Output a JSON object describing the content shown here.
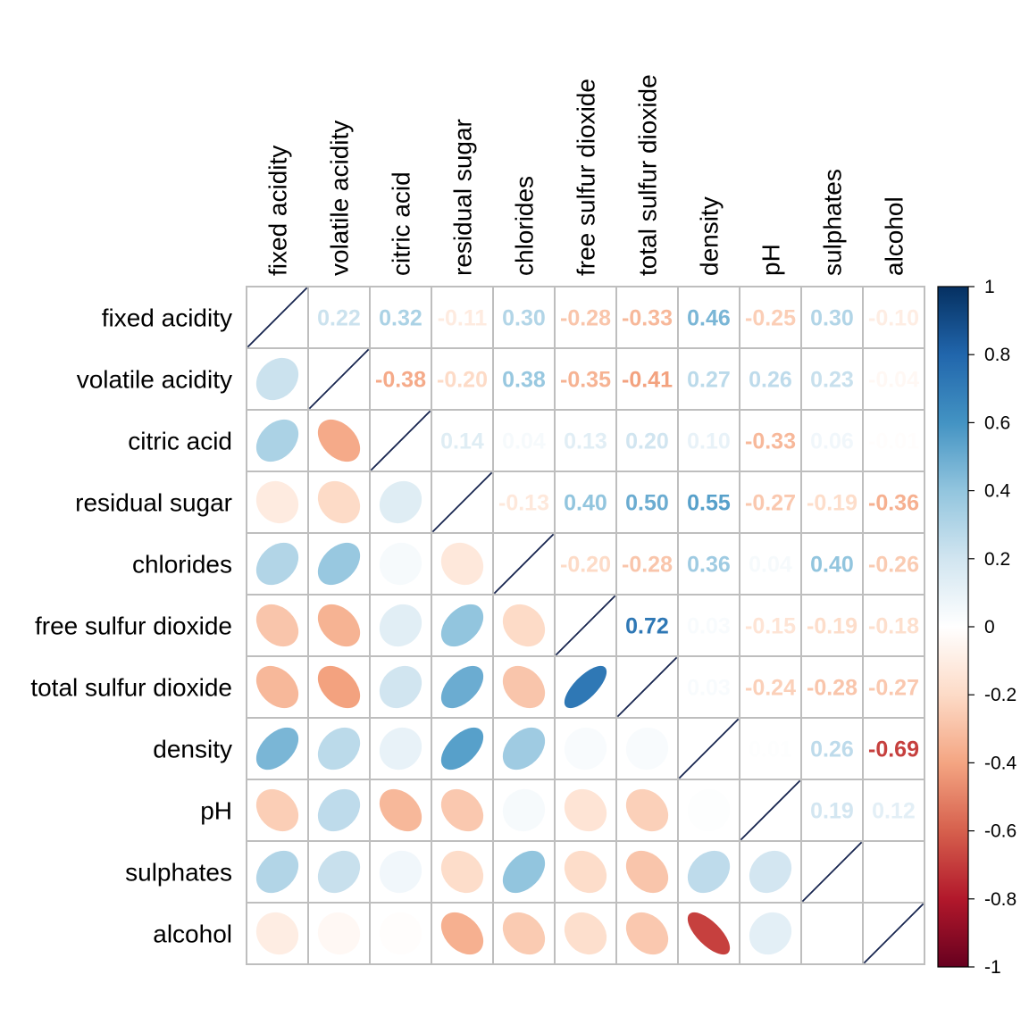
{
  "chart_data": {
    "type": "heatmap",
    "style": "mixed correlation plot: ellipses in lower triangle, numbers in upper triangle",
    "variables": [
      "fixed acidity",
      "volatile acidity",
      "citric acid",
      "residual sugar",
      "chlorides",
      "free sulfur dioxide",
      "total sulfur dioxide",
      "density",
      "pH",
      "sulphates",
      "alcohol"
    ],
    "matrix": [
      [
        1.0,
        0.22,
        0.32,
        -0.11,
        0.3,
        -0.28,
        -0.33,
        0.46,
        -0.25,
        0.3,
        -0.1
      ],
      [
        0.22,
        1.0,
        -0.38,
        -0.2,
        0.38,
        -0.35,
        -0.41,
        0.27,
        0.26,
        0.23,
        -0.04
      ],
      [
        0.32,
        -0.38,
        1.0,
        0.14,
        0.04,
        0.13,
        0.2,
        0.1,
        -0.33,
        0.06,
        -0.01
      ],
      [
        -0.11,
        -0.2,
        0.14,
        1.0,
        -0.13,
        0.4,
        0.5,
        0.55,
        -0.27,
        -0.19,
        -0.36
      ],
      [
        0.3,
        0.38,
        0.04,
        -0.13,
        1.0,
        -0.2,
        -0.28,
        0.36,
        0.04,
        0.4,
        -0.26
      ],
      [
        -0.28,
        -0.35,
        0.13,
        0.4,
        -0.2,
        1.0,
        0.72,
        0.03,
        -0.15,
        -0.19,
        -0.18
      ],
      [
        -0.33,
        -0.41,
        0.2,
        0.5,
        -0.28,
        0.72,
        1.0,
        0.03,
        -0.24,
        -0.28,
        -0.27
      ],
      [
        0.46,
        0.27,
        0.1,
        0.55,
        0.36,
        0.03,
        0.03,
        1.0,
        0.01,
        0.26,
        -0.69
      ],
      [
        -0.25,
        0.26,
        -0.33,
        -0.27,
        0.04,
        -0.15,
        -0.24,
        0.01,
        1.0,
        0.19,
        0.12
      ],
      [
        0.3,
        0.23,
        0.06,
        -0.19,
        0.4,
        -0.19,
        -0.28,
        0.26,
        0.19,
        1.0,
        0.0
      ],
      [
        -0.1,
        -0.04,
        -0.01,
        -0.36,
        -0.26,
        -0.18,
        -0.27,
        -0.69,
        0.12,
        0.0,
        1.0
      ]
    ],
    "color_scale": {
      "min": -1,
      "max": 1,
      "ticks": [
        "1",
        "0.8",
        "0.6",
        "0.4",
        "0.2",
        "0",
        "-0.2",
        "-0.4",
        "-0.6",
        "-0.8",
        "-1"
      ],
      "colors": [
        "#67001F",
        "#B2182B",
        "#D6604D",
        "#F4A582",
        "#FDDBC7",
        "#FFFFFF",
        "#D1E5F0",
        "#92C5DE",
        "#4393C3",
        "#2166AC",
        "#053061"
      ]
    },
    "grid_color": "#BEBEBE",
    "diagonal_line_color": "#17254F"
  }
}
